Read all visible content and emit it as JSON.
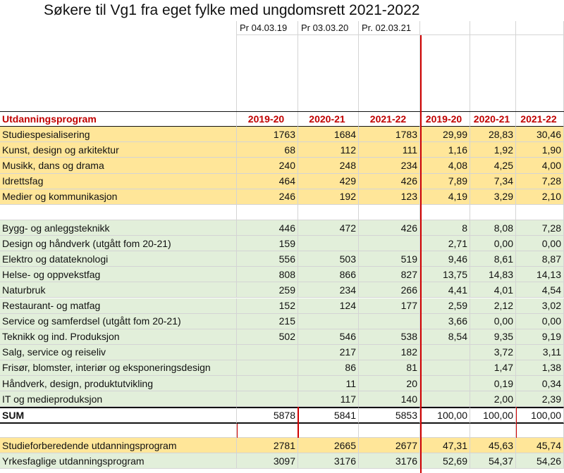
{
  "title": "Søkere til Vg1 fra eget fylke med ungdomsrett 2021-2022",
  "date_labels": [
    "Pr 04.03.19",
    "Pr 03.03.20",
    "Pr. 02.03.21"
  ],
  "header": {
    "program_label": "Utdanningsprogram",
    "columns": [
      "2019-20",
      "2020-21",
      "2021-22",
      "2019-20",
      "2020-21",
      "2021-22"
    ]
  },
  "study_rows": [
    {
      "name": "Studiespesialisering",
      "v": [
        "1763",
        "1684",
        "1783",
        "29,99",
        "28,83",
        "30,46"
      ]
    },
    {
      "name": "Kunst, design og arkitektur",
      "v": [
        "68",
        "112",
        "111",
        "1,16",
        "1,92",
        "1,90"
      ]
    },
    {
      "name": "Musikk, dans og drama",
      "v": [
        "240",
        "248",
        "234",
        "4,08",
        "4,25",
        "4,00"
      ]
    },
    {
      "name": "Idrettsfag",
      "v": [
        "464",
        "429",
        "426",
        "7,89",
        "7,34",
        "7,28"
      ]
    },
    {
      "name": "Medier og kommunikasjon",
      "v": [
        "246",
        "192",
        "123",
        "4,19",
        "3,29",
        "2,10"
      ]
    }
  ],
  "vocational_rows": [
    {
      "name": "Bygg- og anleggsteknikk",
      "v": [
        "446",
        "472",
        "426",
        "8",
        "8,08",
        "7,28"
      ]
    },
    {
      "name": "Design og håndverk (utgått fom 20-21)",
      "v": [
        "159",
        "",
        "",
        "2,71",
        "0,00",
        "0,00"
      ]
    },
    {
      "name": "Elektro og datateknologi",
      "v": [
        "556",
        "503",
        "519",
        "9,46",
        "8,61",
        "8,87"
      ]
    },
    {
      "name": "Helse- og oppvekstfag",
      "v": [
        "808",
        "866",
        "827",
        "13,75",
        "14,83",
        "14,13"
      ]
    },
    {
      "name": "Naturbruk",
      "v": [
        "259",
        "234",
        "266",
        "4,41",
        "4,01",
        "4,54"
      ]
    },
    {
      "name": "Restaurant- og matfag",
      "v": [
        "152",
        "124",
        "177",
        "2,59",
        "2,12",
        "3,02"
      ]
    },
    {
      "name": "Service og samferdsel (utgått fom 20-21)",
      "v": [
        "215",
        "",
        "",
        "3,66",
        "0,00",
        "0,00"
      ]
    },
    {
      "name": "Teknikk og ind. Produksjon",
      "v": [
        "502",
        "546",
        "538",
        "8,54",
        "9,35",
        "9,19"
      ]
    },
    {
      "name": "Salg, service og reiseliv",
      "v": [
        "",
        "217",
        "182",
        "",
        "3,72",
        "3,11"
      ]
    },
    {
      "name": "Frisør, blomster, interiør og eksponeringsdesign",
      "v": [
        "",
        "86",
        "81",
        "",
        "1,47",
        "1,38"
      ]
    },
    {
      "name": "Håndverk, design, produktutvikling",
      "v": [
        "",
        "11",
        "20",
        "",
        "0,19",
        "0,34"
      ]
    },
    {
      "name": "IT og medieproduksjon",
      "v": [
        "",
        "117",
        "140",
        "",
        "2,00",
        "2,39"
      ]
    }
  ],
  "sum_row": {
    "name": "SUM",
    "v": [
      "5878",
      "5841",
      "5853",
      "100,00",
      "100,00",
      "100,00"
    ]
  },
  "summary_rows": [
    {
      "name": "Studieforberedende utdanningsprogram",
      "v": [
        "2781",
        "2665",
        "2677",
        "47,31",
        "45,63",
        "45,74"
      ]
    },
    {
      "name": "Yrkesfaglige utdanningsprogram",
      "v": [
        "3097",
        "3176",
        "3176",
        "52,69",
        "54,37",
        "54,26"
      ]
    }
  ]
}
